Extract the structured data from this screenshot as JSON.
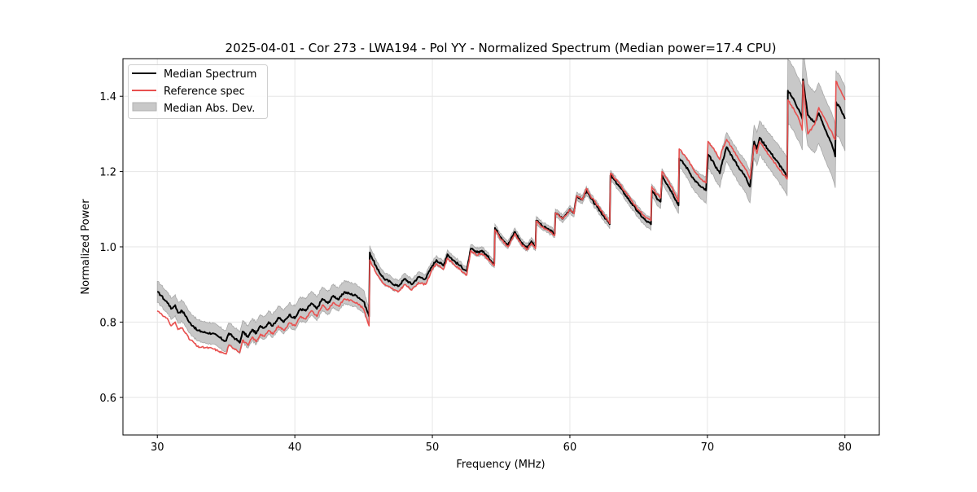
{
  "chart_data": {
    "type": "line",
    "title": "2025-04-01 - Cor 273 - LWA194 - Pol YY - Normalized Spectrum (Median power=17.4 CPU)",
    "xlabel": "Frequency (MHz)",
    "ylabel": "Normalized Power",
    "xlim": [
      27.5,
      82.5
    ],
    "ylim": [
      0.5,
      1.5
    ],
    "xticks": [
      30,
      40,
      50,
      60,
      70,
      80
    ],
    "xtick_labels": [
      "30",
      "40",
      "50",
      "60",
      "70",
      "80"
    ],
    "yticks": [
      0.6,
      0.8,
      1.0,
      1.2,
      1.4
    ],
    "ytick_labels": [
      "0.6",
      "0.8",
      "1.0",
      "1.2",
      "1.4"
    ],
    "grid": true,
    "legend": {
      "placement": "top-left",
      "entries": [
        {
          "label": "Median Spectrum",
          "kind": "line",
          "color": "#000000"
        },
        {
          "label": "Reference spec",
          "kind": "line",
          "color": "#e8504f"
        },
        {
          "label": "Median Abs. Dev.",
          "kind": "band",
          "color": "#c8c8c8"
        }
      ]
    },
    "series": [
      {
        "name": "Median Spectrum",
        "color": "#000000",
        "x": [
          30.0,
          30.3,
          30.5,
          30.8,
          31.0,
          31.3,
          31.5,
          31.8,
          32.1,
          32.3,
          32.6,
          32.9,
          33.2,
          33.5,
          34.0,
          34.5,
          34.8,
          35.0,
          35.2,
          35.7,
          36.0,
          36.2,
          36.6,
          36.9,
          37.2,
          37.5,
          37.8,
          38.1,
          38.4,
          38.8,
          39.2,
          39.6,
          40.0,
          40.4,
          40.8,
          41.2,
          41.6,
          42.0,
          42.4,
          42.8,
          43.2,
          43.6,
          44.0,
          44.5,
          45.0,
          45.4,
          45.45,
          46.0,
          46.5,
          47.0,
          47.5,
          48.0,
          48.5,
          49.0,
          49.5,
          50.0,
          50.3,
          50.8,
          51.1,
          51.5,
          52.0,
          52.5,
          52.8,
          53.2,
          53.6,
          54.0,
          54.5,
          54.55,
          55.0,
          55.5,
          56.0,
          56.5,
          56.9,
          57.2,
          57.5,
          57.55,
          58.0,
          58.5,
          58.9,
          58.95,
          59.5,
          60.0,
          60.3,
          60.5,
          60.9,
          61.2,
          61.5,
          62.0,
          62.5,
          62.9,
          62.95,
          63.5,
          64.0,
          64.5,
          65.0,
          65.5,
          65.9,
          65.95,
          66.3,
          66.6,
          66.7,
          67.1,
          67.5,
          67.9,
          67.95,
          68.3,
          68.6,
          69.0,
          69.5,
          69.9,
          70.05,
          70.5,
          70.9,
          71.0,
          71.4,
          71.8,
          72.2,
          72.8,
          73.1,
          73.4,
          73.6,
          73.8,
          74.2,
          74.6,
          75.0,
          75.4,
          75.8,
          75.85,
          76.3,
          76.7,
          76.9,
          76.95,
          77.3,
          77.8,
          78.1,
          78.6,
          79.1,
          79.3,
          79.35,
          79.7,
          80.0
        ],
        "y": [
          0.88,
          0.87,
          0.86,
          0.85,
          0.835,
          0.845,
          0.825,
          0.83,
          0.815,
          0.8,
          0.79,
          0.778,
          0.775,
          0.772,
          0.77,
          0.76,
          0.752,
          0.75,
          0.77,
          0.755,
          0.745,
          0.775,
          0.76,
          0.78,
          0.77,
          0.79,
          0.785,
          0.8,
          0.79,
          0.812,
          0.8,
          0.82,
          0.81,
          0.835,
          0.83,
          0.85,
          0.835,
          0.862,
          0.85,
          0.87,
          0.86,
          0.88,
          0.875,
          0.87,
          0.855,
          0.815,
          0.985,
          0.94,
          0.915,
          0.905,
          0.895,
          0.915,
          0.9,
          0.92,
          0.915,
          0.95,
          0.965,
          0.95,
          0.98,
          0.965,
          0.95,
          0.935,
          0.995,
          0.985,
          0.99,
          0.975,
          0.955,
          1.05,
          1.025,
          1.005,
          1.04,
          1.01,
          0.998,
          1.015,
          1.0,
          1.07,
          1.055,
          1.045,
          1.035,
          1.09,
          1.075,
          1.1,
          1.09,
          1.135,
          1.125,
          1.15,
          1.13,
          1.105,
          1.08,
          1.06,
          1.19,
          1.165,
          1.14,
          1.115,
          1.09,
          1.07,
          1.06,
          1.15,
          1.13,
          1.12,
          1.19,
          1.165,
          1.14,
          1.11,
          1.235,
          1.22,
          1.205,
          1.18,
          1.16,
          1.15,
          1.245,
          1.22,
          1.195,
          1.215,
          1.265,
          1.24,
          1.215,
          1.185,
          1.16,
          1.28,
          1.26,
          1.29,
          1.27,
          1.25,
          1.23,
          1.21,
          1.185,
          1.415,
          1.39,
          1.36,
          1.34,
          1.445,
          1.35,
          1.33,
          1.355,
          1.31,
          1.265,
          1.24,
          1.385,
          1.365,
          1.34
        ]
      },
      {
        "name": "Reference spec",
        "color": "#e8504f",
        "x": [
          30.0,
          30.3,
          30.5,
          30.8,
          31.0,
          31.3,
          31.5,
          31.8,
          32.1,
          32.3,
          32.6,
          32.9,
          33.2,
          33.5,
          34.0,
          34.5,
          34.8,
          35.0,
          35.2,
          35.7,
          36.0,
          36.2,
          36.6,
          36.9,
          37.2,
          37.5,
          37.8,
          38.1,
          38.4,
          38.8,
          39.2,
          39.6,
          40.0,
          40.4,
          40.8,
          41.2,
          41.6,
          42.0,
          42.4,
          42.8,
          43.2,
          43.6,
          44.0,
          44.5,
          45.0,
          45.4,
          45.45,
          46.0,
          46.5,
          47.0,
          47.5,
          48.0,
          48.5,
          49.0,
          49.5,
          50.0,
          50.3,
          50.8,
          51.1,
          51.5,
          52.0,
          52.5,
          52.8,
          53.2,
          53.6,
          54.0,
          54.5,
          54.55,
          55.0,
          55.5,
          56.0,
          56.5,
          56.9,
          57.2,
          57.5,
          57.55,
          58.0,
          58.5,
          58.9,
          58.95,
          59.5,
          60.0,
          60.3,
          60.5,
          60.9,
          61.2,
          61.5,
          62.0,
          62.5,
          62.9,
          62.95,
          63.5,
          64.0,
          64.5,
          65.0,
          65.5,
          65.9,
          65.95,
          66.3,
          66.6,
          66.7,
          67.1,
          67.5,
          67.9,
          67.95,
          68.3,
          68.6,
          69.0,
          69.5,
          69.9,
          70.05,
          70.5,
          70.9,
          71.0,
          71.4,
          71.8,
          72.2,
          72.8,
          73.1,
          73.4,
          73.6,
          73.8,
          74.2,
          74.6,
          75.0,
          75.4,
          75.8,
          75.85,
          76.3,
          76.7,
          76.9,
          76.95,
          77.3,
          77.8,
          78.1,
          78.6,
          79.1,
          79.3,
          79.35,
          79.7,
          80.0
        ],
        "y": [
          0.83,
          0.822,
          0.815,
          0.805,
          0.79,
          0.8,
          0.78,
          0.785,
          0.77,
          0.755,
          0.748,
          0.735,
          0.733,
          0.732,
          0.73,
          0.722,
          0.718,
          0.715,
          0.738,
          0.728,
          0.72,
          0.752,
          0.738,
          0.76,
          0.748,
          0.768,
          0.762,
          0.778,
          0.768,
          0.79,
          0.778,
          0.798,
          0.79,
          0.815,
          0.808,
          0.83,
          0.815,
          0.845,
          0.832,
          0.852,
          0.842,
          0.862,
          0.858,
          0.852,
          0.835,
          0.79,
          0.965,
          0.925,
          0.9,
          0.89,
          0.88,
          0.9,
          0.885,
          0.905,
          0.9,
          0.94,
          0.955,
          0.94,
          0.97,
          0.955,
          0.94,
          0.925,
          0.99,
          0.978,
          0.982,
          0.968,
          0.95,
          1.045,
          1.02,
          1.0,
          1.035,
          1.005,
          0.993,
          1.01,
          0.995,
          1.068,
          1.052,
          1.042,
          1.03,
          1.09,
          1.075,
          1.098,
          1.088,
          1.135,
          1.125,
          1.155,
          1.135,
          1.11,
          1.085,
          1.062,
          1.195,
          1.172,
          1.148,
          1.122,
          1.098,
          1.078,
          1.07,
          1.16,
          1.14,
          1.13,
          1.2,
          1.178,
          1.152,
          1.12,
          1.26,
          1.245,
          1.23,
          1.205,
          1.18,
          1.17,
          1.28,
          1.258,
          1.232,
          1.25,
          1.285,
          1.262,
          1.238,
          1.205,
          1.18,
          1.27,
          1.248,
          1.28,
          1.258,
          1.238,
          1.218,
          1.198,
          1.18,
          1.39,
          1.365,
          1.335,
          1.31,
          1.44,
          1.3,
          1.325,
          1.37,
          1.335,
          1.3,
          1.285,
          1.44,
          1.415,
          1.39
        ]
      }
    ],
    "band": {
      "name": "Median Abs. Dev.",
      "color": "#c8c8c8",
      "center_series": "Median Spectrum",
      "halfwidth_x": [
        30.0,
        35.0,
        40.0,
        45.0,
        45.45,
        50.0,
        55.0,
        60.0,
        63.0,
        66.0,
        68.0,
        70.0,
        72.0,
        74.0,
        75.8,
        75.85,
        78.0,
        80.0
      ],
      "halfwidth_y": [
        0.028,
        0.028,
        0.032,
        0.03,
        0.018,
        0.012,
        0.01,
        0.01,
        0.012,
        0.016,
        0.022,
        0.035,
        0.04,
        0.045,
        0.05,
        0.085,
        0.08,
        0.085
      ]
    }
  }
}
